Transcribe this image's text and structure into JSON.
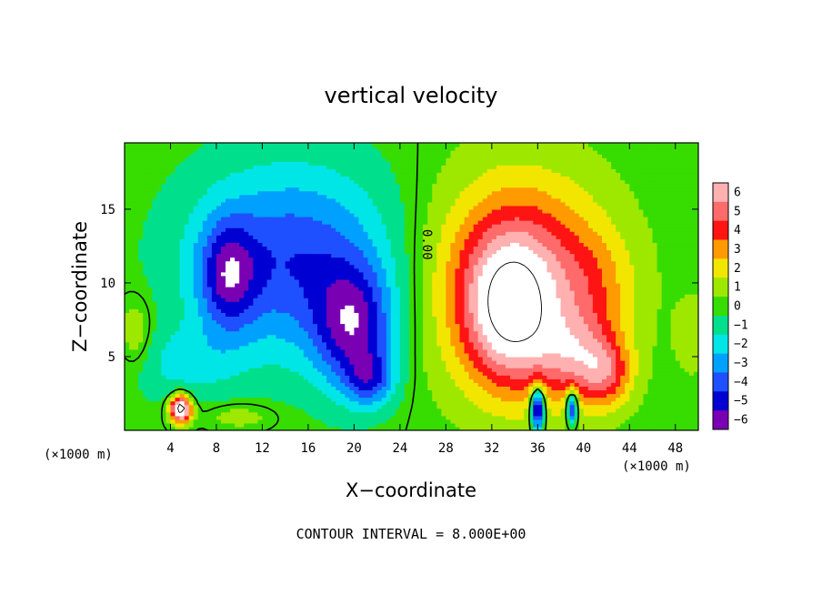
{
  "chart_data": {
    "type": "heatmap",
    "title": "vertical velocity",
    "xlabel": "X−coordinate",
    "ylabel": "Z−coordinate",
    "x_unit_left": "(×1000 m)",
    "x_unit_right": "(×1000 m)",
    "xlim": [
      0,
      50
    ],
    "ylim": [
      0,
      19.5
    ],
    "x_ticks": [
      4,
      8,
      12,
      16,
      20,
      24,
      28,
      32,
      36,
      40,
      44,
      48
    ],
    "x_tick_labels": [
      "4",
      "8",
      "12",
      "16",
      "20",
      "24",
      "28",
      "32",
      "36",
      "40",
      "44",
      "48"
    ],
    "y_ticks": [
      5,
      10,
      15
    ],
    "y_tick_labels": [
      "5",
      "10",
      "15"
    ],
    "colorbar": {
      "min": -6,
      "max": 6,
      "labels": [
        "6",
        "5",
        "4",
        "3",
        "2",
        "1",
        "0",
        "−1",
        "−2",
        "−3",
        "−4",
        "−5",
        "−6"
      ],
      "values": [
        6,
        5,
        4,
        3,
        2,
        1,
        0,
        -1,
        -2,
        -3,
        -4,
        -5,
        -6
      ]
    },
    "contour_label": "0.00",
    "contour_label_x": 26,
    "contour_label_z": 12.6,
    "footer": "CONTOUR INTERVAL = 8.000E+00",
    "blobs": [
      {
        "x": 14.5,
        "z": 11.5,
        "sx": 9.0,
        "sz": 6.5,
        "w": -4.4
      },
      {
        "x": 9.0,
        "z": 10.5,
        "sx": 2.4,
        "sz": 3.6,
        "w": -3.8
      },
      {
        "x": 20.0,
        "z": 6.8,
        "sx": 3.4,
        "sz": 4.2,
        "w": -4.8
      },
      {
        "x": 21.5,
        "z": 3.5,
        "sx": 2.0,
        "sz": 1.8,
        "w": -3.0
      },
      {
        "x": 5.0,
        "z": 4.5,
        "sx": 5.0,
        "sz": 2.5,
        "w": -1.6
      },
      {
        "x": 4.9,
        "z": 1.5,
        "sx": 0.9,
        "sz": 0.9,
        "w": 9.5
      },
      {
        "x": 10.0,
        "z": 1.0,
        "sx": 3.0,
        "sz": 0.9,
        "w": 1.2
      },
      {
        "x": 34.5,
        "z": 10.0,
        "sx": 7.5,
        "sz": 7.0,
        "w": 5.6
      },
      {
        "x": 33.5,
        "z": 8.0,
        "sx": 3.6,
        "sz": 4.8,
        "w": 4.5
      },
      {
        "x": 39.5,
        "z": 5.0,
        "sx": 3.5,
        "sz": 3.0,
        "w": 3.5
      },
      {
        "x": 42.0,
        "z": 3.8,
        "sx": 2.2,
        "sz": 2.2,
        "w": 3.0
      },
      {
        "x": 41.0,
        "z": 10.0,
        "sx": 3.5,
        "sz": 3.5,
        "w": 1.2
      },
      {
        "x": 36.0,
        "z": 1.5,
        "sx": 0.6,
        "sz": 1.5,
        "w": -7.5
      },
      {
        "x": 39.0,
        "z": 1.6,
        "sx": 0.5,
        "sz": 1.2,
        "w": -6.0
      },
      {
        "x": 1.0,
        "z": 6.5,
        "sx": 1.5,
        "sz": 2.5,
        "w": 1.6
      },
      {
        "x": 49.5,
        "z": 6.5,
        "sx": 1.5,
        "sz": 2.5,
        "w": 1.4
      }
    ]
  }
}
